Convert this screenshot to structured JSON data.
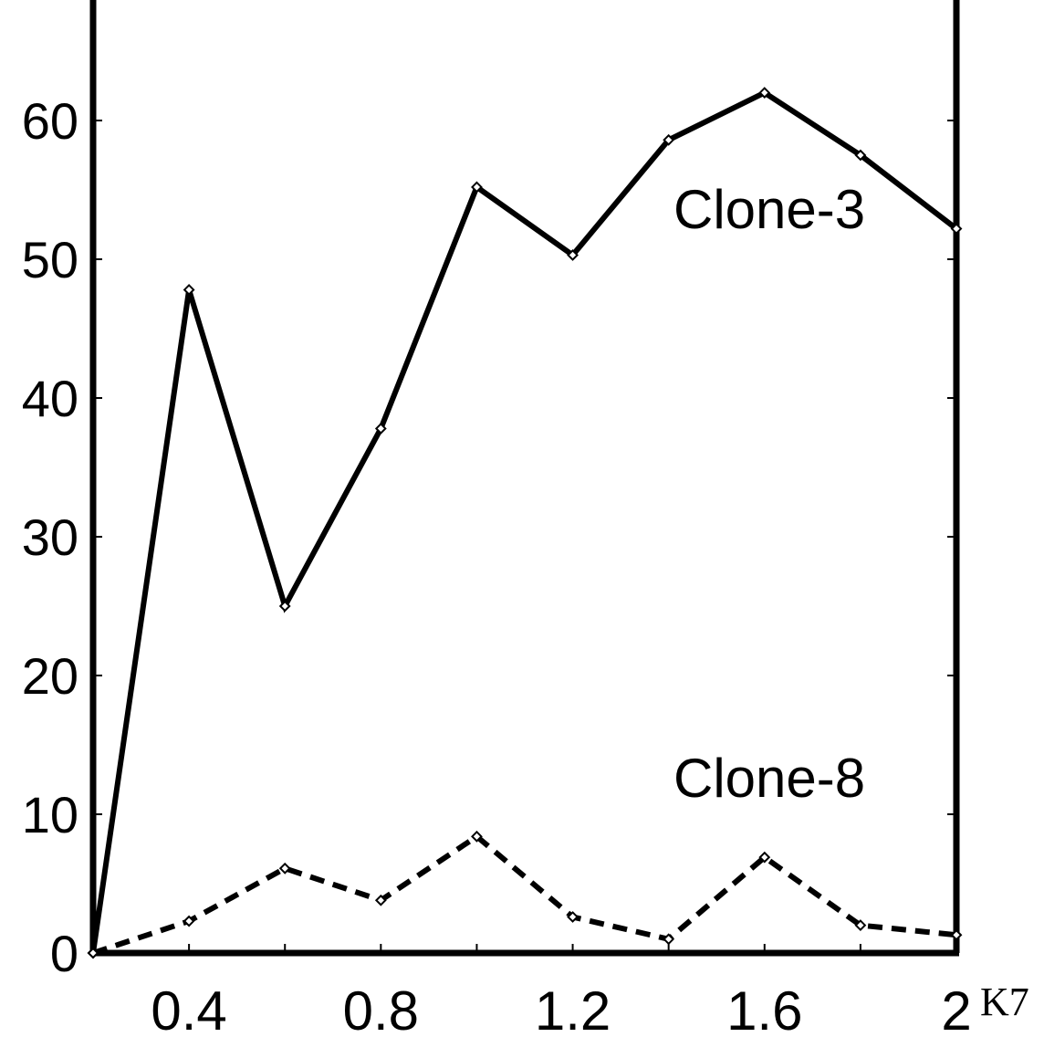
{
  "chart_data": {
    "type": "line",
    "x": [
      0.2,
      0.4,
      0.6,
      0.8,
      1.0,
      1.2,
      1.4,
      1.6,
      1.8,
      2.0
    ],
    "xlim": [
      0.2,
      2.0
    ],
    "ylim": [
      0,
      68
    ],
    "x_ticks": [
      0.4,
      0.8,
      1.2,
      1.6,
      2
    ],
    "x_tick_labels": [
      "0.4",
      "0.8",
      "1.2",
      "1.6",
      "2"
    ],
    "x_minor_ticks": [
      0.4,
      0.6,
      0.8,
      1.0,
      1.2,
      1.4,
      1.6,
      1.8
    ],
    "y_ticks": [
      0,
      10,
      20,
      30,
      40,
      50,
      60
    ],
    "y_tick_labels": [
      "0",
      "10",
      "20",
      "30",
      "40",
      "50",
      "60"
    ],
    "xlabel": "K7",
    "ylabel": "",
    "title": "",
    "grid": false,
    "series": [
      {
        "name": "Clone-3",
        "style": "solid",
        "color": "#000000",
        "values": [
          0,
          47.8,
          25,
          37.8,
          55.2,
          50.3,
          58.6,
          62,
          57.5,
          52.2
        ]
      },
      {
        "name": "Clone-8",
        "style": "dashed",
        "color": "#000000",
        "values": [
          0,
          2.3,
          6.1,
          3.8,
          8.4,
          2.6,
          1.0,
          6.9,
          2.0,
          1.3
        ]
      }
    ]
  }
}
